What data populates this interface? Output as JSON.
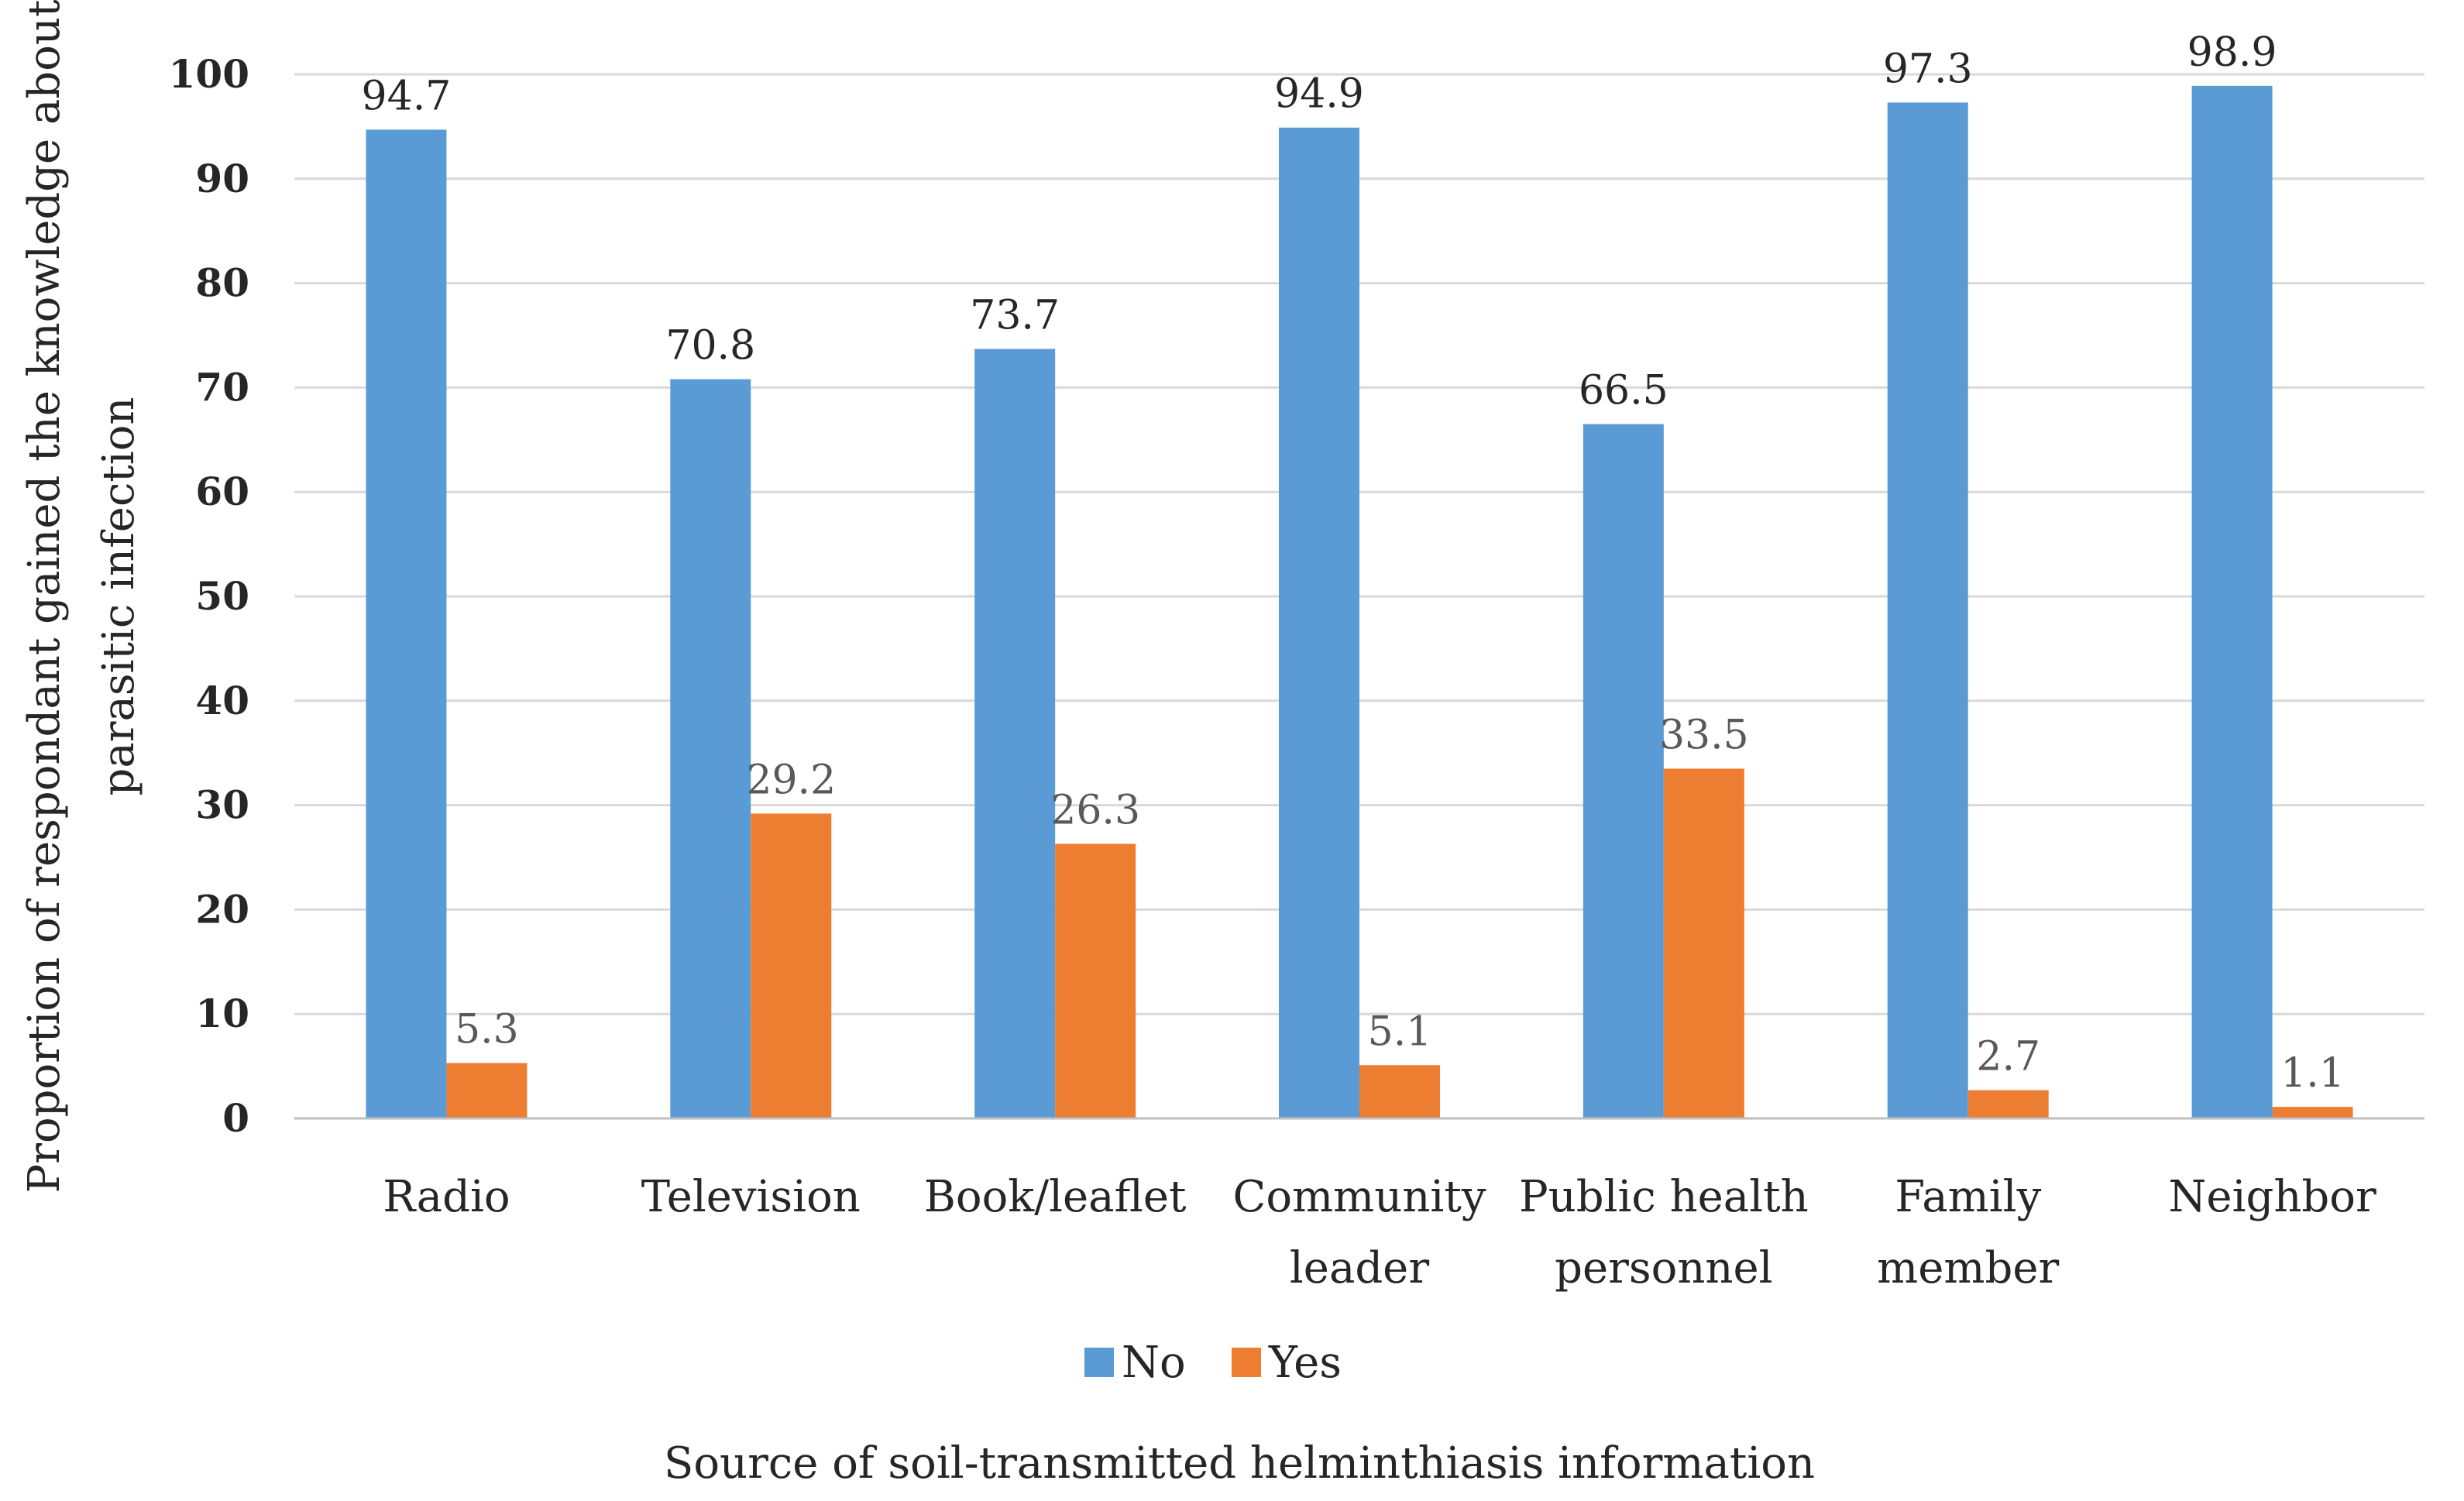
{
  "chart_data": {
    "type": "bar",
    "title": "",
    "xlabel": "Source of soil-transmitted helminthiasis information",
    "ylabel_lines": [
      "Proportion of respondant gained the knowledge about",
      "parasitic infection"
    ],
    "ylim": [
      0,
      100
    ],
    "yticks": [
      0,
      10,
      20,
      30,
      40,
      50,
      60,
      70,
      80,
      90,
      100
    ],
    "grid": true,
    "legend_position": "bottom-center",
    "categories": [
      [
        "Radio"
      ],
      [
        "Television"
      ],
      [
        "Book/leaflet"
      ],
      [
        "Community",
        "leader"
      ],
      [
        "Public health",
        "personnel"
      ],
      [
        "Family",
        "member"
      ],
      [
        "Neighbor"
      ]
    ],
    "series": [
      {
        "name": "No",
        "color": "#5B9BD5",
        "label_color": "#262626",
        "values": [
          94.7,
          70.8,
          73.7,
          94.9,
          66.5,
          97.3,
          98.9
        ],
        "labels": [
          "94.7",
          "70.8",
          "73.7",
          "94.9",
          "66.5",
          "97.3",
          "98.9"
        ]
      },
      {
        "name": "Yes",
        "color": "#ED7D31",
        "label_color": "#595959",
        "values": [
          5.3,
          29.2,
          26.3,
          5.1,
          33.5,
          2.7,
          1.1
        ],
        "labels": [
          "5.3",
          "29.2",
          "26.3",
          "5.1",
          "33.5",
          "2.7",
          "1.1"
        ]
      }
    ]
  }
}
